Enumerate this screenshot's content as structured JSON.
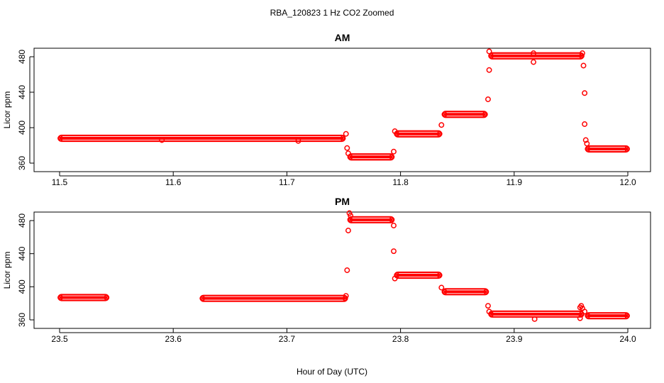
{
  "figure": {
    "title": "RBA_120823  1 Hz CO2 Zoomed",
    "xlabel": "Hour of Day (UTC)"
  },
  "chart_data": [
    {
      "type": "scatter",
      "title": "AM",
      "ylabel": "Licor ppm",
      "xlim": [
        11.5,
        12.0
      ],
      "ylim": [
        360,
        480
      ],
      "xticks": [
        "11.5",
        "11.6",
        "11.7",
        "11.8",
        "11.9",
        "12.0"
      ],
      "yticks": [
        "360",
        "400",
        "440",
        "480"
      ],
      "marker_color": "#ff0000",
      "segments": [
        {
          "x0": 11.5,
          "x1": 11.75,
          "y": 388
        },
        {
          "x0": 11.755,
          "x1": 11.793,
          "y": 367
        },
        {
          "x0": 11.796,
          "x1": 11.835,
          "y": 393
        },
        {
          "x0": 11.838,
          "x1": 11.875,
          "y": 415
        },
        {
          "x0": 11.879,
          "x1": 11.96,
          "y": 481
        },
        {
          "x0": 11.964,
          "x1": 12.0,
          "y": 376
        }
      ],
      "points": [
        {
          "x": 11.752,
          "y": 393
        },
        {
          "x": 11.753,
          "y": 377
        },
        {
          "x": 11.754,
          "y": 371
        },
        {
          "x": 11.794,
          "y": 373
        },
        {
          "x": 11.795,
          "y": 396
        },
        {
          "x": 11.836,
          "y": 403
        },
        {
          "x": 11.877,
          "y": 432
        },
        {
          "x": 11.878,
          "y": 465
        },
        {
          "x": 11.878,
          "y": 486
        },
        {
          "x": 11.917,
          "y": 474
        },
        {
          "x": 11.917,
          "y": 484
        },
        {
          "x": 11.96,
          "y": 484
        },
        {
          "x": 11.961,
          "y": 470
        },
        {
          "x": 11.962,
          "y": 439
        },
        {
          "x": 11.962,
          "y": 404
        },
        {
          "x": 11.963,
          "y": 386
        },
        {
          "x": 11.964,
          "y": 382
        },
        {
          "x": 11.59,
          "y": 386
        },
        {
          "x": 11.71,
          "y": 385
        }
      ]
    },
    {
      "type": "scatter",
      "title": "PM",
      "ylabel": "Licor ppm",
      "xlim": [
        23.5,
        24.0
      ],
      "ylim": [
        360,
        480
      ],
      "xticks": [
        "23.5",
        "23.6",
        "23.7",
        "23.8",
        "23.9",
        "24.0"
      ],
      "yticks": [
        "360",
        "400",
        "440",
        "480"
      ],
      "marker_color": "#ff0000",
      "segments": [
        {
          "x0": 23.5,
          "x1": 23.542,
          "y": 387
        },
        {
          "x0": 23.625,
          "x1": 23.752,
          "y": 386
        },
        {
          "x0": 23.755,
          "x1": 23.793,
          "y": 481
        },
        {
          "x0": 23.796,
          "x1": 23.835,
          "y": 414
        },
        {
          "x0": 23.838,
          "x1": 23.876,
          "y": 394
        },
        {
          "x0": 23.879,
          "x1": 23.96,
          "y": 367
        },
        {
          "x0": 23.964,
          "x1": 24.0,
          "y": 365
        }
      ],
      "points": [
        {
          "x": 23.752,
          "y": 389
        },
        {
          "x": 23.753,
          "y": 420
        },
        {
          "x": 23.754,
          "y": 468
        },
        {
          "x": 23.755,
          "y": 489
        },
        {
          "x": 23.756,
          "y": 486
        },
        {
          "x": 23.794,
          "y": 474
        },
        {
          "x": 23.794,
          "y": 443
        },
        {
          "x": 23.795,
          "y": 410
        },
        {
          "x": 23.836,
          "y": 399
        },
        {
          "x": 23.877,
          "y": 377
        },
        {
          "x": 23.878,
          "y": 370
        },
        {
          "x": 23.918,
          "y": 361
        },
        {
          "x": 23.958,
          "y": 375
        },
        {
          "x": 23.959,
          "y": 377
        },
        {
          "x": 23.96,
          "y": 374
        },
        {
          "x": 23.962,
          "y": 370
        },
        {
          "x": 23.958,
          "y": 362
        }
      ]
    }
  ]
}
